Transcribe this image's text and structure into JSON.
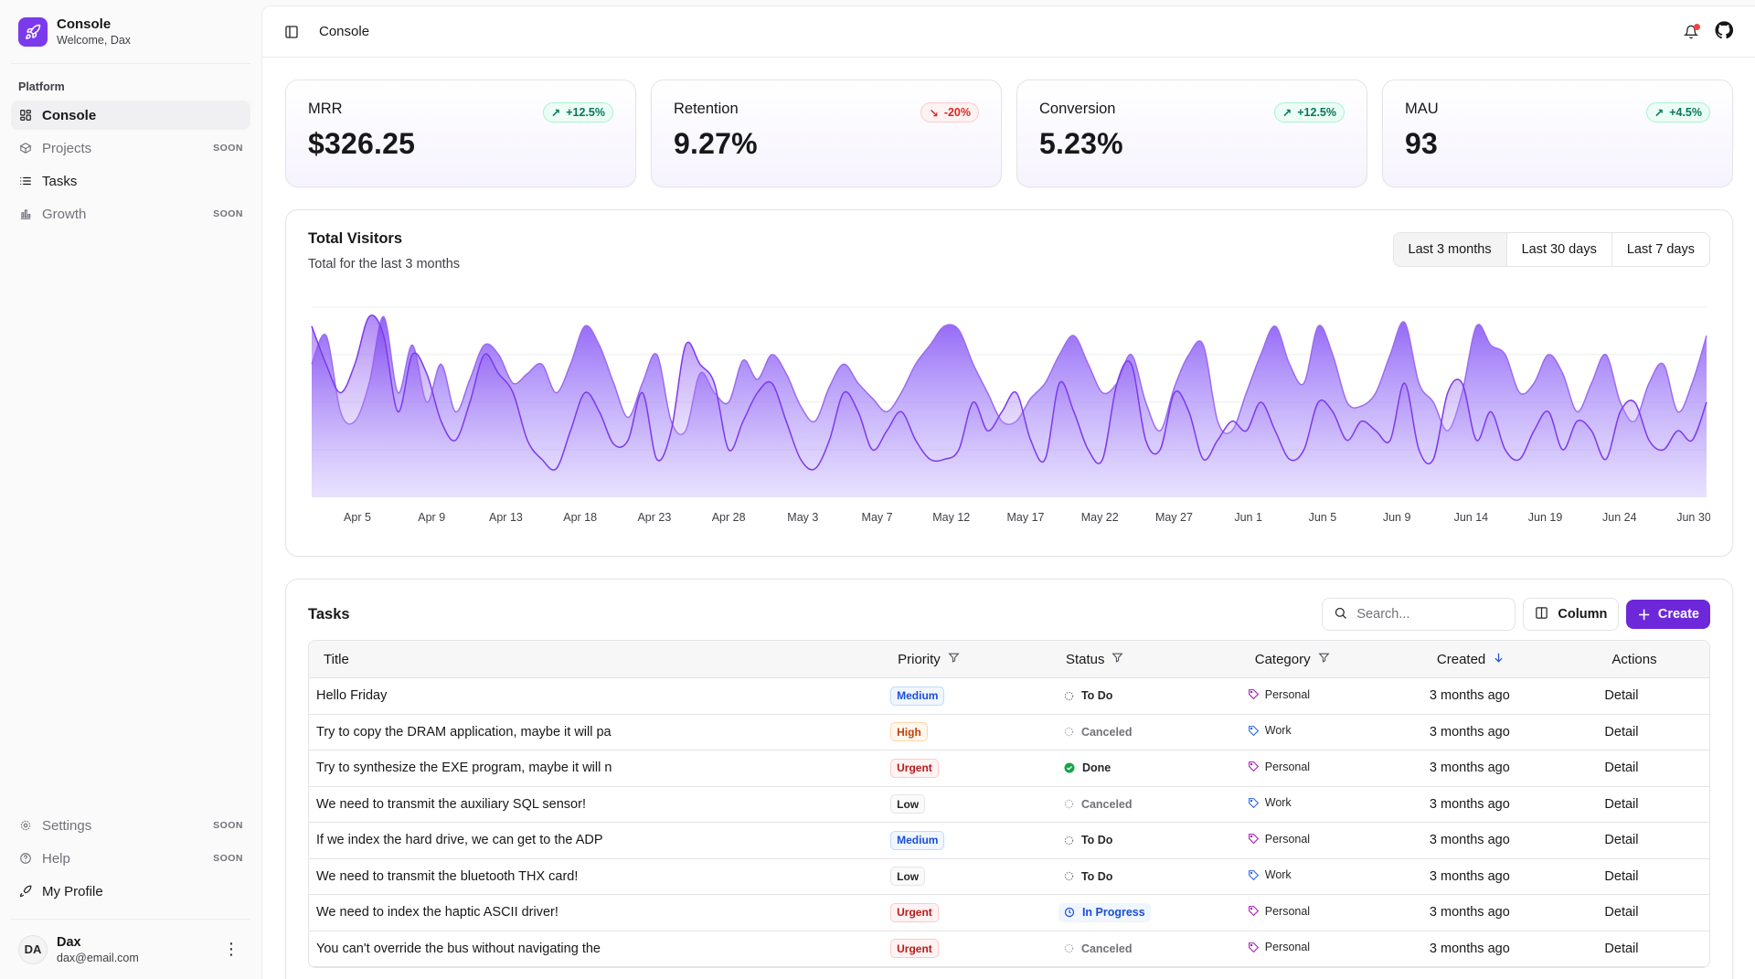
{
  "brand": {
    "title": "Console",
    "subtitle": "Welcome, Dax"
  },
  "sidebar": {
    "section": "Platform",
    "items": [
      {
        "label": "Console",
        "soon": ""
      },
      {
        "label": "Projects",
        "soon": "SOON"
      },
      {
        "label": "Tasks",
        "soon": ""
      },
      {
        "label": "Growth",
        "soon": "SOON"
      }
    ],
    "bottom": [
      {
        "label": "Settings",
        "soon": "SOON"
      },
      {
        "label": "Help",
        "soon": "SOON"
      },
      {
        "label": "My Profile",
        "soon": ""
      }
    ],
    "user": {
      "initials": "DA",
      "name": "Dax",
      "email": "dax@email.com"
    }
  },
  "topbar": {
    "title": "Console"
  },
  "kpis": [
    {
      "label": "MRR",
      "value": "$326.25",
      "delta": "+12.5%",
      "trend": "up"
    },
    {
      "label": "Retention",
      "value": "9.27%",
      "delta": "-20%",
      "trend": "down"
    },
    {
      "label": "Conversion",
      "value": "5.23%",
      "delta": "+12.5%",
      "trend": "up"
    },
    {
      "label": "MAU",
      "value": "93",
      "delta": "+4.5%",
      "trend": "up"
    }
  ],
  "visitors": {
    "title": "Total Visitors",
    "subtitle": "Total for the last 3 months",
    "ranges": [
      "Last 3 months",
      "Last 30 days",
      "Last 7 days"
    ]
  },
  "chart_data": {
    "type": "area",
    "title": "Total Visitors",
    "subtitle": "Total for the last 3 months",
    "xlabel": "",
    "ylabel": "",
    "ylim": [
      0,
      100
    ],
    "grid": true,
    "x_ticks": [
      "Apr 5",
      "Apr 9",
      "Apr 13",
      "Apr 18",
      "Apr 23",
      "Apr 28",
      "May 3",
      "May 7",
      "May 12",
      "May 17",
      "May 22",
      "May 27",
      "Jun 1",
      "Jun 5",
      "Jun 9",
      "Jun 14",
      "Jun 19",
      "Jun 24",
      "Jun 30"
    ],
    "x_start": "2024-04-01",
    "series": [
      {
        "values": [
          70,
          85,
          45,
          40,
          60,
          95,
          55,
          80,
          50,
          70,
          45,
          62,
          80,
          75,
          60,
          65,
          70,
          55,
          70,
          90,
          80,
          60,
          42,
          60,
          75,
          40,
          35,
          65,
          55,
          50,
          72,
          62,
          75,
          65,
          48,
          40,
          58,
          70,
          60,
          52,
          45,
          55,
          70,
          80,
          90,
          88,
          70,
          55,
          40,
          40,
          52,
          60,
          75,
          85,
          70,
          55,
          60,
          75,
          50,
          35,
          58,
          75,
          80,
          40,
          35,
          55,
          75,
          90,
          70,
          60,
          90,
          75,
          50,
          48,
          55,
          75,
          92,
          60,
          50,
          35,
          55,
          90,
          80,
          75,
          55,
          60,
          75,
          65,
          45,
          60,
          75,
          50,
          40,
          60,
          70,
          45,
          60,
          85
        ]
      },
      {
        "values": [
          90,
          70,
          55,
          70,
          95,
          85,
          45,
          75,
          65,
          40,
          30,
          50,
          75,
          65,
          55,
          30,
          20,
          15,
          35,
          55,
          45,
          28,
          30,
          55,
          20,
          35,
          80,
          70,
          60,
          25,
          40,
          55,
          60,
          40,
          20,
          15,
          30,
          55,
          45,
          25,
          35,
          45,
          30,
          20,
          20,
          25,
          50,
          35,
          45,
          55,
          30,
          20,
          60,
          45,
          25,
          20,
          60,
          70,
          30,
          25,
          55,
          45,
          20,
          30,
          40,
          35,
          50,
          35,
          20,
          25,
          50,
          45,
          30,
          40,
          35,
          30,
          60,
          25,
          20,
          55,
          60,
          30,
          45,
          25,
          20,
          35,
          45,
          25,
          40,
          35,
          20,
          45,
          50,
          30,
          25,
          35,
          30,
          50
        ]
      }
    ],
    "colors": {
      "series1": "#9b6cf0",
      "series2": "#7c3aed",
      "grid": "#ececef"
    }
  },
  "tasks": {
    "title": "Tasks",
    "search_placeholder": "Search...",
    "column_label": "Column",
    "create_label": "Create",
    "headers": {
      "title": "Title",
      "priority": "Priority",
      "status": "Status",
      "category": "Category",
      "created": "Created",
      "actions": "Actions"
    },
    "rows": [
      {
        "title": "Hello Friday",
        "priority": "Medium",
        "status": "To Do",
        "category": "Personal",
        "created": "3 months ago",
        "action": "Detail"
      },
      {
        "title": "Try to copy the DRAM application, maybe it will pa",
        "priority": "High",
        "status": "Canceled",
        "category": "Work",
        "created": "3 months ago",
        "action": "Detail"
      },
      {
        "title": "Try to synthesize the EXE program, maybe it will n",
        "priority": "Urgent",
        "status": "Done",
        "category": "Personal",
        "created": "3 months ago",
        "action": "Detail"
      },
      {
        "title": "We need to transmit the auxiliary SQL sensor!",
        "priority": "Low",
        "status": "Canceled",
        "category": "Work",
        "created": "3 months ago",
        "action": "Detail"
      },
      {
        "title": "If we index the hard drive, we can get to the ADP",
        "priority": "Medium",
        "status": "To Do",
        "category": "Personal",
        "created": "3 months ago",
        "action": "Detail"
      },
      {
        "title": "We need to transmit the bluetooth THX card!",
        "priority": "Low",
        "status": "To Do",
        "category": "Work",
        "created": "3 months ago",
        "action": "Detail"
      },
      {
        "title": "We need to index the haptic ASCII driver!",
        "priority": "Urgent",
        "status": "In Progress",
        "category": "Personal",
        "created": "3 months ago",
        "action": "Detail"
      },
      {
        "title": "You can't override the bus without navigating the",
        "priority": "Urgent",
        "status": "Canceled",
        "category": "Personal",
        "created": "3 months ago",
        "action": "Detail"
      }
    ]
  }
}
